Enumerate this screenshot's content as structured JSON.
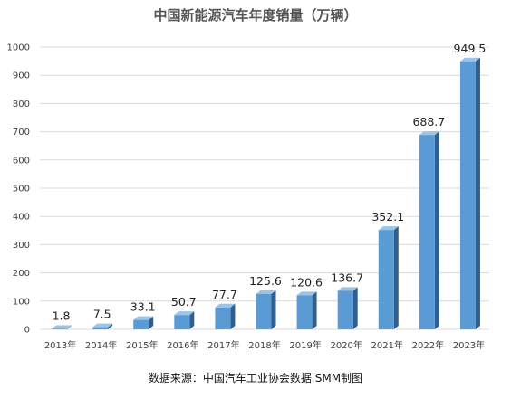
{
  "chart_data": {
    "type": "bar",
    "title": "中国新能源汽车年度销量（万辆）",
    "categories": [
      "2013年",
      "2014年",
      "2015年",
      "2016年",
      "2017年",
      "2018年",
      "2019年",
      "2020年",
      "2021年",
      "2022年",
      "2023年"
    ],
    "values": [
      1.8,
      7.5,
      33.1,
      50.7,
      77.7,
      125.6,
      120.6,
      136.7,
      352.1,
      688.7,
      949.5
    ],
    "data_labels": [
      "1.8",
      "7.5",
      "33.1",
      "50.7",
      "77.7",
      "125.6",
      "120.6",
      "136.7",
      "352.1",
      "688.7",
      "949.5"
    ],
    "ylim": [
      0,
      1000
    ],
    "yticks": [
      0,
      100,
      200,
      300,
      400,
      500,
      600,
      700,
      800,
      900,
      1000
    ],
    "grid": true,
    "legend": "none",
    "xlabel": "",
    "ylabel": "",
    "style": "3d-bar",
    "colors": {
      "bar_front": "#5b9bd5",
      "bar_side": "#2e5f8e",
      "bar_top": "#9dc3e6"
    }
  },
  "footer": {
    "source": "数据来源：中国汽车工业协会数据 SMM制图"
  }
}
